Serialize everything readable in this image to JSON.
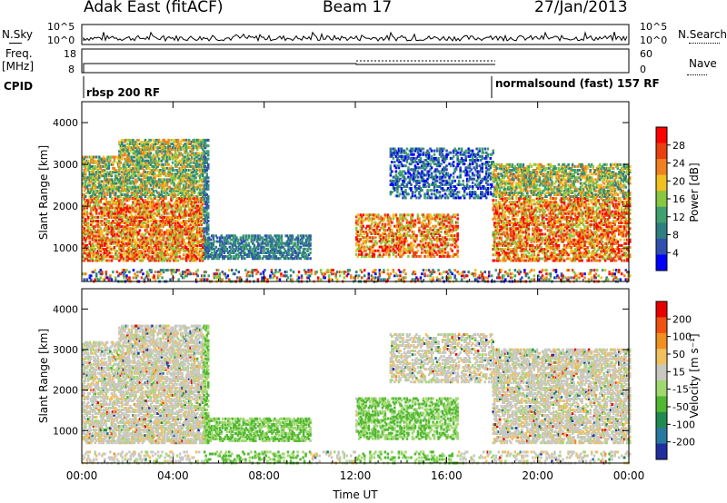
{
  "header": {
    "site": "Adak East (fitACF)",
    "beam": "Beam 17",
    "date": "27/Jan/2013"
  },
  "strips": {
    "nsky": {
      "label": "N.Sky",
      "ticks": [
        "10^5",
        "10^0"
      ]
    },
    "nsearch": {
      "label": "N.Search",
      "ticks": [
        "10^5",
        "10^0"
      ]
    },
    "freq": {
      "label_top": "Freq.",
      "label_unit": "[MHz]",
      "ticks": [
        "18",
        "8"
      ]
    },
    "nave": {
      "label": "Nave",
      "ticks": [
        "60",
        "0"
      ]
    },
    "cpid": {
      "label": "CPID",
      "modes": [
        "rbsp 200 RF",
        "normalsound (fast) 157 RF"
      ]
    }
  },
  "chart_data": [
    {
      "type": "heatmap",
      "panel": "power",
      "ylabel": "Slant Range [km]",
      "yticks": [
        "4000",
        "3000",
        "2000",
        "1000"
      ],
      "ylim": [
        200,
        4500
      ],
      "colorbar": {
        "label": "Power [dB]",
        "ticks": [
          "28",
          "24",
          "20",
          "16",
          "12",
          "8",
          "4"
        ],
        "range": [
          0,
          30
        ],
        "colors": [
          "#0000ff",
          "#3050b0",
          "#2e7f7f",
          "#40a070",
          "#88c840",
          "#f0c020",
          "#f08020",
          "#e84010",
          "#ff0000"
        ]
      }
    },
    {
      "type": "heatmap",
      "panel": "velocity",
      "ylabel": "Slant Range [km]",
      "yticks": [
        "4000",
        "3000",
        "2000",
        "1000"
      ],
      "ylim": [
        200,
        4500
      ],
      "colorbar": {
        "label": "Velocity [m s⁻¹]",
        "ticks": [
          "200",
          "100",
          "50",
          "15",
          "-15",
          "-50",
          "-100",
          "-200"
        ],
        "colors": [
          "#1f2fa0",
          "#2878a0",
          "#208a50",
          "#50b830",
          "#a0d870",
          "#c8c8c0",
          "#f0c060",
          "#f09020",
          "#f05010",
          "#e80000"
        ]
      }
    }
  ],
  "time_axis": {
    "label": "Time UT",
    "ticks": [
      "00:00",
      "04:00",
      "08:00",
      "12:00",
      "16:00",
      "20:00",
      "00:00"
    ]
  }
}
